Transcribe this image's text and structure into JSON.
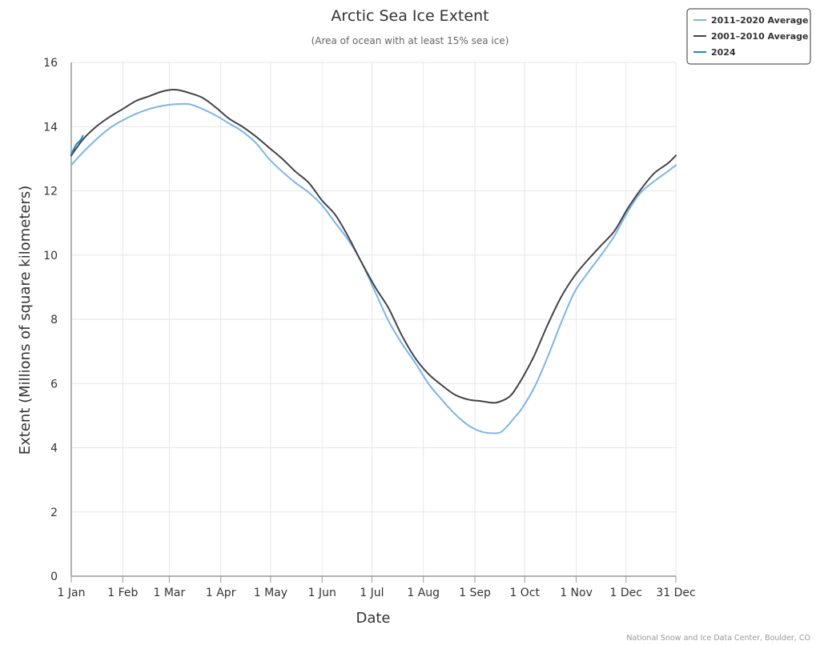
{
  "chart_data": {
    "type": "line",
    "title": "Arctic Sea Ice Extent",
    "subtitle": "(Area of ocean with at least 15% sea ice)",
    "xlabel": "Date",
    "ylabel": "Extent (Millions of square kilometers)",
    "credit": "National Snow and Ice Data Center, Boulder, CO",
    "ylim": [
      0,
      16
    ],
    "y_ticks": [
      "0",
      "2",
      "4",
      "6",
      "8",
      "10",
      "12",
      "14",
      "16"
    ],
    "x_ticks": [
      {
        "label": "1 Jan",
        "day": 1
      },
      {
        "label": "1 Feb",
        "day": 32
      },
      {
        "label": "1 Mar",
        "day": 60
      },
      {
        "label": "1 Apr",
        "day": 91
      },
      {
        "label": "1 May",
        "day": 121
      },
      {
        "label": "1 Jun",
        "day": 152
      },
      {
        "label": "1 Jul",
        "day": 182
      },
      {
        "label": "1 Aug",
        "day": 213
      },
      {
        "label": "1 Sep",
        "day": 244
      },
      {
        "label": "1 Oct",
        "day": 274
      },
      {
        "label": "1 Nov",
        "day": 305
      },
      {
        "label": "1 Dec",
        "day": 335
      },
      {
        "label": "31 Dec",
        "day": 365
      }
    ],
    "x_range": [
      1,
      365
    ],
    "grid": true,
    "legend_position": "top-right",
    "series": [
      {
        "name": "2011–2020 Average",
        "color": "#7cb5e8",
        "x": [
          1,
          8,
          16,
          24,
          32,
          40,
          48,
          56,
          64,
          72,
          80,
          88,
          96,
          104,
          112,
          120,
          128,
          136,
          144,
          152,
          160,
          168,
          176,
          184,
          192,
          200,
          208,
          216,
          224,
          232,
          240,
          248,
          256,
          260,
          264,
          268,
          272,
          280,
          288,
          296,
          304,
          312,
          320,
          328,
          336,
          344,
          352,
          360,
          365
        ],
        "y": [
          12.8,
          13.2,
          13.6,
          13.95,
          14.2,
          14.4,
          14.55,
          14.65,
          14.7,
          14.7,
          14.55,
          14.35,
          14.1,
          13.85,
          13.5,
          13.0,
          12.6,
          12.25,
          11.95,
          11.55,
          11.0,
          10.45,
          9.75,
          8.85,
          7.95,
          7.25,
          6.65,
          6.0,
          5.5,
          5.05,
          4.7,
          4.5,
          4.45,
          4.5,
          4.7,
          4.95,
          5.2,
          5.9,
          6.85,
          7.9,
          8.85,
          9.45,
          10.0,
          10.6,
          11.35,
          11.95,
          12.3,
          12.6,
          12.8
        ]
      },
      {
        "name": "2001–2010 Average",
        "color": "#434348",
        "x": [
          1,
          8,
          16,
          24,
          32,
          40,
          48,
          56,
          64,
          72,
          80,
          88,
          96,
          104,
          112,
          120,
          128,
          136,
          144,
          152,
          160,
          168,
          176,
          184,
          192,
          200,
          208,
          216,
          224,
          232,
          240,
          248,
          256,
          262,
          266,
          270,
          274,
          280,
          288,
          296,
          304,
          312,
          320,
          328,
          336,
          344,
          352,
          360,
          365
        ],
        "y": [
          13.1,
          13.6,
          14.0,
          14.3,
          14.55,
          14.8,
          14.95,
          15.1,
          15.15,
          15.05,
          14.9,
          14.6,
          14.25,
          14.0,
          13.7,
          13.35,
          13.0,
          12.6,
          12.25,
          11.7,
          11.25,
          10.55,
          9.75,
          9.0,
          8.35,
          7.5,
          6.8,
          6.3,
          5.95,
          5.65,
          5.5,
          5.45,
          5.4,
          5.5,
          5.65,
          5.95,
          6.3,
          6.9,
          7.85,
          8.7,
          9.35,
          9.85,
          10.3,
          10.75,
          11.45,
          12.05,
          12.55,
          12.85,
          13.1
        ]
      },
      {
        "name": "2024",
        "color": "#1f88c9",
        "x": [
          1,
          2,
          3,
          4,
          5,
          6,
          7,
          8
        ],
        "y": [
          13.15,
          13.25,
          13.35,
          13.45,
          13.5,
          13.55,
          13.62,
          13.72
        ]
      }
    ]
  }
}
